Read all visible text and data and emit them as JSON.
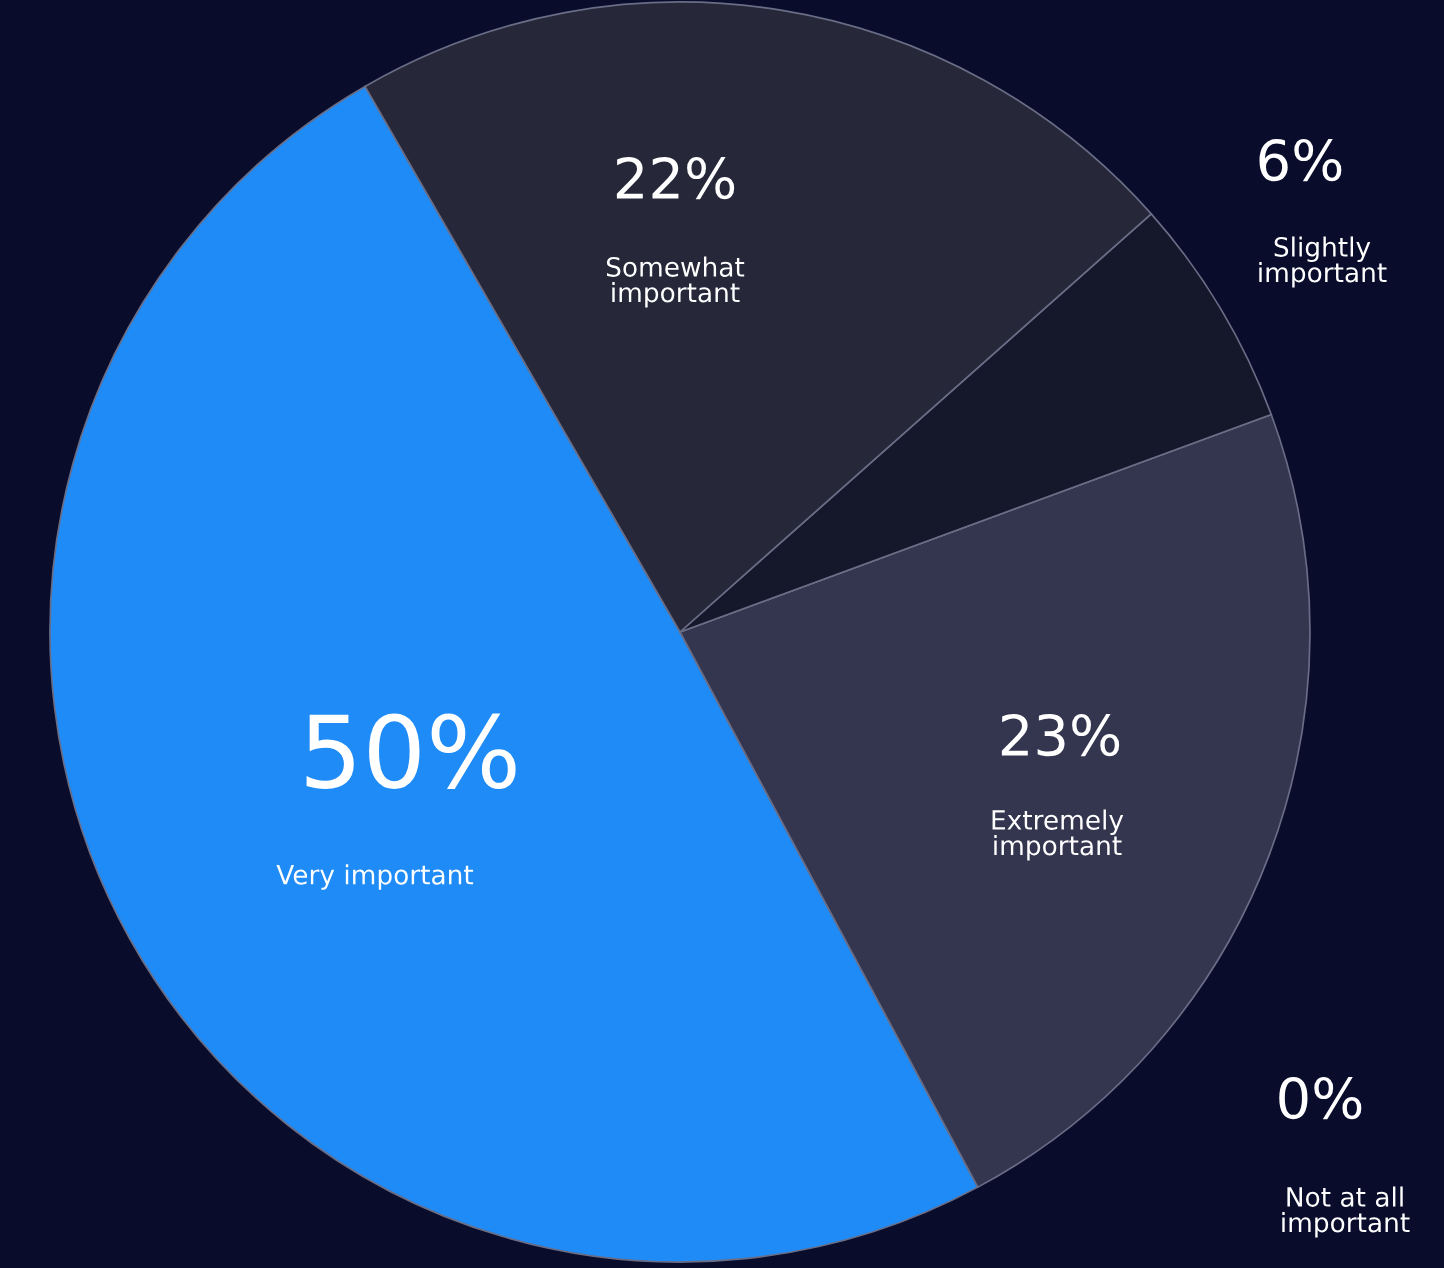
{
  "chart_data": {
    "type": "pie",
    "categories": [
      "Very important",
      "Extremely\nimportant",
      "Not at all\nimportant",
      "Slightly\nimportant",
      "Somewhat\nimportant"
    ],
    "values": [
      50,
      23,
      0,
      6,
      22
    ],
    "value_labels": [
      "50%",
      "23%",
      "0%",
      "6%",
      "22%"
    ],
    "colors": [
      "#1f8bf7",
      "#34364f",
      "#1b1d33",
      "#15172a",
      "#26283a"
    ],
    "legend": false
  }
}
